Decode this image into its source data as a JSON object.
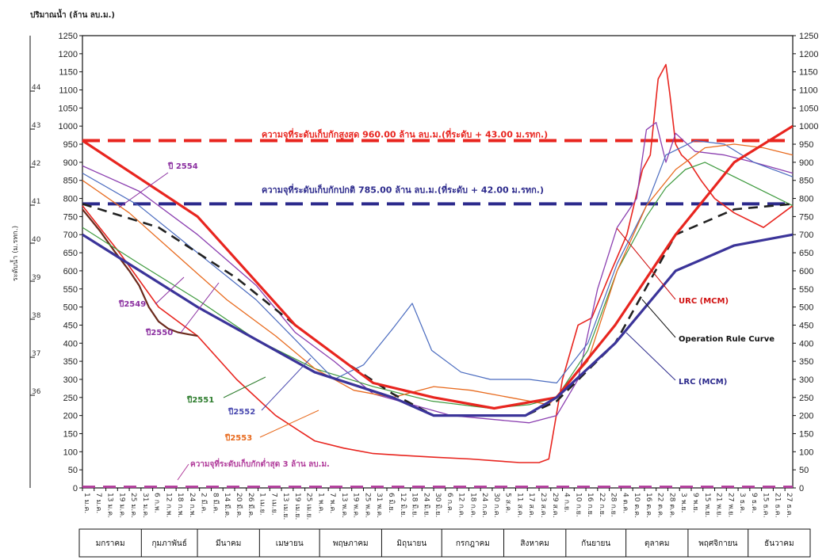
{
  "chart_data": {
    "type": "line",
    "title": "",
    "ylabel": "ปริมาณน้ำ (ล้าน ลบ.ม.)",
    "ylabel_right": "",
    "y2label": "ระดับน้ำ (ม.รทก.)",
    "ylim": [
      0,
      1250
    ],
    "yticks": [
      0,
      50,
      100,
      150,
      200,
      250,
      300,
      350,
      400,
      450,
      500,
      550,
      600,
      650,
      700,
      750,
      800,
      850,
      900,
      950,
      1000,
      1050,
      1100,
      1150,
      1200,
      1250
    ],
    "months": [
      "มกราคม",
      "กุมภาพันธ์",
      "มีนาคม",
      "เมษายน",
      "พฤษภาคม",
      "มิถุนายน",
      "กรกฎาคม",
      "สิงหาคม",
      "กันยายน",
      "ตุลาคม",
      "พฤศจิกายน",
      "ธันวาคม"
    ],
    "x_tick_labels": [
      "1 ม.ค.",
      "7 ม.ค.",
      "13 ม.ค.",
      "19 ม.ค.",
      "25 ม.ค.",
      "31 ม.ค.",
      "6 ก.พ.",
      "12 ก.พ.",
      "18 ก.พ.",
      "24 ก.พ.",
      "2 มี.ค.",
      "8 มี.ค.",
      "14 มี.ค.",
      "20 มี.ค.",
      "26 มี.ค.",
      "1 เม.ย.",
      "7 เม.ย.",
      "13 เม.ย.",
      "19 เม.ย.",
      "25 เม.ย.",
      "1 พ.ค.",
      "7 พ.ค.",
      "13 พ.ค.",
      "19 พ.ค.",
      "25 พ.ค.",
      "31 พ.ค.",
      "6 มิ.ย.",
      "12 มิ.ย.",
      "18 มิ.ย.",
      "24 มิ.ย.",
      "30 มิ.ย.",
      "6 ก.ค.",
      "12 ก.ค.",
      "18 ก.ค.",
      "24 ก.ค.",
      "30 ก.ค.",
      "5 ส.ค.",
      "11 ส.ค.",
      "17 ส.ค.",
      "23 ส.ค.",
      "29 ส.ค.",
      "4 ก.ย.",
      "10 ก.ย.",
      "16 ก.ย.",
      "22 ก.ย.",
      "28 ก.ย.",
      "4 ต.ค.",
      "10 ต.ค.",
      "16 ต.ค.",
      "22 ต.ค.",
      "28 ต.ค.",
      "3 พ.ย.",
      "9 พ.ย.",
      "15 พ.ย.",
      "21 พ.ย.",
      "27 พ.ย.",
      "3 ธ.ค.",
      "9 ธ.ค.",
      "15 ธ.ค.",
      "21 ธ.ค.",
      "27 ธ.ค."
    ],
    "x_unit": "day of year",
    "hlines": [
      {
        "value": 960,
        "label": "ความจุที่ระดับเก็บกักสูงสุด 960.00 ล้าน ลบ.ม.(ที่ระดับ + 43.00 ม.รทก.)",
        "color": "#e8251f"
      },
      {
        "value": 785,
        "label": "ความจุที่ระดับเก็บกักปกติ 785.00 ล้าน ลบ.ม.(ที่ระดับ + 42.00 ม.รทก.)",
        "color": "#2c2a8c"
      },
      {
        "value": 3,
        "label": "ความจุที่ระดับเก็บกักต่ำสุด 3 ล้าน ลบ.ม.",
        "color": "#b03a9a"
      }
    ],
    "series": [
      {
        "name": "URC (MCM)",
        "color": "#e8251f",
        "width": 3.2,
        "dash": "",
        "x": [
          1,
          60,
          110,
          150,
          181,
          212,
          244,
          274,
          305,
          335,
          365
        ],
        "y": [
          960,
          750,
          450,
          290,
          250,
          220,
          250,
          450,
          700,
          900,
          1000
        ]
      },
      {
        "name": "LRC (MCM)",
        "color": "#3b3499",
        "width": 3.2,
        "dash": "",
        "x": [
          1,
          60,
          120,
          160,
          181,
          212,
          228,
          244,
          274,
          305,
          335,
          365
        ],
        "y": [
          700,
          500,
          320,
          250,
          200,
          200,
          200,
          250,
          400,
          600,
          670,
          700
        ]
      },
      {
        "name": "Operation Rule Curve",
        "color": "#222222",
        "width": 2.6,
        "dash": "12,8",
        "x": [
          1,
          40,
          80,
          110,
          135,
          160,
          181,
          212,
          228,
          244,
          274,
          305,
          335,
          355,
          365
        ],
        "y": [
          785,
          720,
          580,
          450,
          350,
          260,
          200,
          200,
          200,
          240,
          400,
          700,
          770,
          780,
          785
        ]
      },
      {
        "name": "ปี 2554",
        "color": "#e8251f",
        "width": 1.6,
        "dash": "",
        "x": [
          1,
          20,
          40,
          60,
          80,
          100,
          120,
          135,
          150,
          165,
          181,
          200,
          212,
          225,
          235,
          240,
          247,
          255,
          262,
          272,
          280,
          288,
          292,
          296,
          300,
          302,
          305,
          308,
          312,
          318,
          325,
          335,
          350,
          365
        ],
        "y": [
          780,
          650,
          500,
          420,
          300,
          200,
          130,
          110,
          95,
          90,
          85,
          80,
          75,
          70,
          70,
          80,
          300,
          450,
          470,
          600,
          700,
          880,
          920,
          1130,
          1170,
          1090,
          950,
          920,
          900,
          850,
          800,
          760,
          720,
          780
        ]
      },
      {
        "name": "ปี 2549",
        "color": "#6b2a1c",
        "width": 2.2,
        "dash": "",
        "x": [
          1,
          10,
          18,
          25,
          30,
          35,
          40,
          45,
          50,
          55,
          60
        ],
        "y": [
          770,
          710,
          650,
          600,
          560,
          500,
          460,
          440,
          430,
          425,
          420
        ]
      },
      {
        "name": "ปี 2550",
        "color": "#8b3fb0",
        "width": 1.3,
        "dash": "",
        "x": [
          1,
          30,
          60,
          90,
          110,
          130,
          150,
          170,
          190,
          210,
          230,
          244,
          255,
          265,
          275,
          285,
          290,
          295,
          300,
          305,
          315,
          330,
          345,
          365
        ],
        "y": [
          890,
          820,
          700,
          560,
          430,
          350,
          260,
          230,
          200,
          190,
          180,
          200,
          300,
          550,
          720,
          800,
          990,
          1010,
          900,
          980,
          930,
          920,
          900,
          870
        ]
      },
      {
        "name": "ปี 2551",
        "color": "#3e9a3e",
        "width": 1.2,
        "dash": "",
        "x": [
          1,
          30,
          60,
          90,
          120,
          150,
          180,
          210,
          230,
          244,
          260,
          275,
          290,
          300,
          310,
          320,
          335,
          350,
          365
        ],
        "y": [
          720,
          620,
          520,
          410,
          330,
          280,
          240,
          220,
          230,
          250,
          380,
          600,
          750,
          830,
          880,
          900,
          860,
          820,
          780
        ]
      },
      {
        "name": "ปี 2552",
        "color": "#4a6bbf",
        "width": 1.2,
        "dash": "",
        "x": [
          1,
          30,
          60,
          90,
          110,
          130,
          145,
          160,
          170,
          180,
          195,
          210,
          230,
          244,
          260,
          275,
          290,
          300,
          315,
          330,
          345,
          365
        ],
        "y": [
          870,
          780,
          650,
          520,
          410,
          300,
          340,
          440,
          510,
          380,
          320,
          300,
          300,
          290,
          400,
          620,
          780,
          920,
          960,
          950,
          900,
          860
        ]
      },
      {
        "name": "ปี 2553",
        "color": "#e86b1f",
        "width": 1.3,
        "dash": "",
        "x": [
          1,
          25,
          50,
          75,
          100,
          120,
          140,
          160,
          181,
          200,
          220,
          240,
          260,
          275,
          290,
          305,
          320,
          335,
          350,
          365
        ],
        "y": [
          850,
          760,
          640,
          520,
          420,
          330,
          270,
          250,
          280,
          270,
          250,
          230,
          350,
          600,
          780,
          880,
          940,
          950,
          940,
          920
        ]
      }
    ],
    "annotations": [
      {
        "text": "ปี 2554",
        "color": "#8b2fa0"
      },
      {
        "text": "ปี2549",
        "color": "#8b2fa0"
      },
      {
        "text": "ปี2550",
        "color": "#8b2fa0"
      },
      {
        "text": "ปี2551",
        "color": "#2e7d2e"
      },
      {
        "text": "ปี2552",
        "color": "#4a4ab0"
      },
      {
        "text": "ปี2553",
        "color": "#e86b1f"
      },
      {
        "text": "URC (MCM)",
        "color": "#d01010"
      },
      {
        "text": "Operation Rule Curve",
        "color": "#111111"
      },
      {
        "text": "LRC (MCM)",
        "color": "#2c2a8c"
      }
    ],
    "level_ticks_left": [
      "44",
      "43",
      "42",
      "41",
      "40",
      "39",
      "38",
      "37",
      "36"
    ],
    "grid": false
  }
}
